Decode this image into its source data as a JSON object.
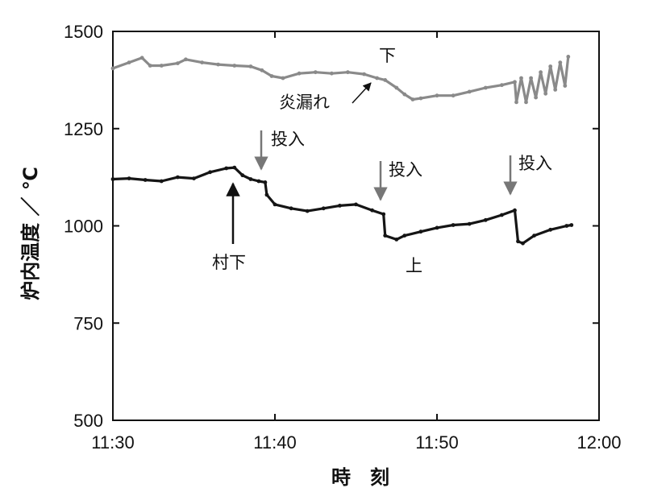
{
  "chart_data": {
    "type": "line",
    "xlabel": "時　刻",
    "ylabel": "炉内温度 ／ ℃",
    "x_range": [
      "11:30",
      "12:00"
    ],
    "ylim": [
      500,
      1500
    ],
    "x_ticks": [
      "11:30",
      "11:40",
      "11:50",
      "12:00"
    ],
    "y_ticks": [
      500,
      750,
      1000,
      1250,
      1500
    ],
    "series": [
      {
        "name": "下",
        "color": "#8a8a8a",
        "points": [
          [
            "11:30",
            1405
          ],
          [
            "11:31",
            1420
          ],
          [
            "11:31.8",
            1432
          ],
          [
            "11:32.3",
            1412
          ],
          [
            "11:33",
            1412
          ],
          [
            "11:34",
            1418
          ],
          [
            "11:34.5",
            1428
          ],
          [
            "11:35.5",
            1420
          ],
          [
            "11:36.5",
            1415
          ],
          [
            "11:37.5",
            1412
          ],
          [
            "11:38.5",
            1410
          ],
          [
            "11:39.2",
            1400
          ],
          [
            "11:39.8",
            1385
          ],
          [
            "11:40.5",
            1380
          ],
          [
            "11:41.5",
            1392
          ],
          [
            "11:42.5",
            1395
          ],
          [
            "11:43.5",
            1392
          ],
          [
            "11:44.5",
            1395
          ],
          [
            "11:45.5",
            1390
          ],
          [
            "11:46.3",
            1380
          ],
          [
            "11:46.8",
            1375
          ],
          [
            "11:47.5",
            1355
          ],
          [
            "11:48",
            1338
          ],
          [
            "11:48.5",
            1325
          ],
          [
            "11:49",
            1328
          ],
          [
            "11:50",
            1335
          ],
          [
            "11:51",
            1335
          ],
          [
            "11:52",
            1345
          ],
          [
            "11:53",
            1355
          ],
          [
            "11:54",
            1362
          ],
          [
            "11:54.8",
            1370
          ],
          [
            "11:54.9",
            1318
          ],
          [
            "11:55.2",
            1380
          ],
          [
            "11:55.5",
            1318
          ],
          [
            "11:55.8",
            1380
          ],
          [
            "11:56.1",
            1330
          ],
          [
            "11:56.4",
            1395
          ],
          [
            "11:56.7",
            1340
          ],
          [
            "11:57",
            1410
          ],
          [
            "11:57.3",
            1350
          ],
          [
            "11:57.6",
            1420
          ],
          [
            "11:57.9",
            1360
          ],
          [
            "11:58.1",
            1435
          ]
        ]
      },
      {
        "name": "上",
        "color": "#151515",
        "points": [
          [
            "11:30",
            1120
          ],
          [
            "11:31",
            1122
          ],
          [
            "11:32",
            1118
          ],
          [
            "11:33",
            1115
          ],
          [
            "11:34",
            1125
          ],
          [
            "11:35",
            1122
          ],
          [
            "11:36",
            1138
          ],
          [
            "11:37",
            1148
          ],
          [
            "11:37.5",
            1150
          ],
          [
            "11:38",
            1130
          ],
          [
            "11:38.5",
            1120
          ],
          [
            "11:39",
            1115
          ],
          [
            "11:39.4",
            1112
          ],
          [
            "11:39.5",
            1080
          ],
          [
            "11:40",
            1055
          ],
          [
            "11:41",
            1045
          ],
          [
            "11:42",
            1038
          ],
          [
            "11:43",
            1045
          ],
          [
            "11:44",
            1052
          ],
          [
            "11:45",
            1055
          ],
          [
            "11:46",
            1040
          ],
          [
            "11:46.7",
            1030
          ],
          [
            "11:46.8",
            975
          ],
          [
            "11:47.5",
            965
          ],
          [
            "11:48",
            975
          ],
          [
            "11:49",
            985
          ],
          [
            "11:50",
            995
          ],
          [
            "11:51",
            1002
          ],
          [
            "11:52",
            1005
          ],
          [
            "11:53",
            1015
          ],
          [
            "11:54",
            1028
          ],
          [
            "11:54.8",
            1040
          ],
          [
            "11:55",
            960
          ],
          [
            "11:55.3",
            955
          ],
          [
            "11:56",
            975
          ],
          [
            "11:57",
            990
          ],
          [
            "11:58",
            1000
          ],
          [
            "11:58.3",
            1002
          ]
        ]
      }
    ],
    "annotations": [
      {
        "id": "leak",
        "text": "炎漏れ",
        "arrow_to": [
          "11:46.5",
          1380
        ]
      },
      {
        "id": "murashita",
        "text": "村下",
        "arrow_to": [
          "11:37.3",
          1150
        ]
      },
      {
        "id": "input1",
        "text": "投入",
        "arrow_to": [
          "11:39.2",
          1140
        ]
      },
      {
        "id": "input2",
        "text": "投入",
        "arrow_to": [
          "11:46.6",
          1060
        ]
      },
      {
        "id": "input3",
        "text": "投入",
        "arrow_to": [
          "11:54.6",
          1070
        ]
      }
    ]
  }
}
